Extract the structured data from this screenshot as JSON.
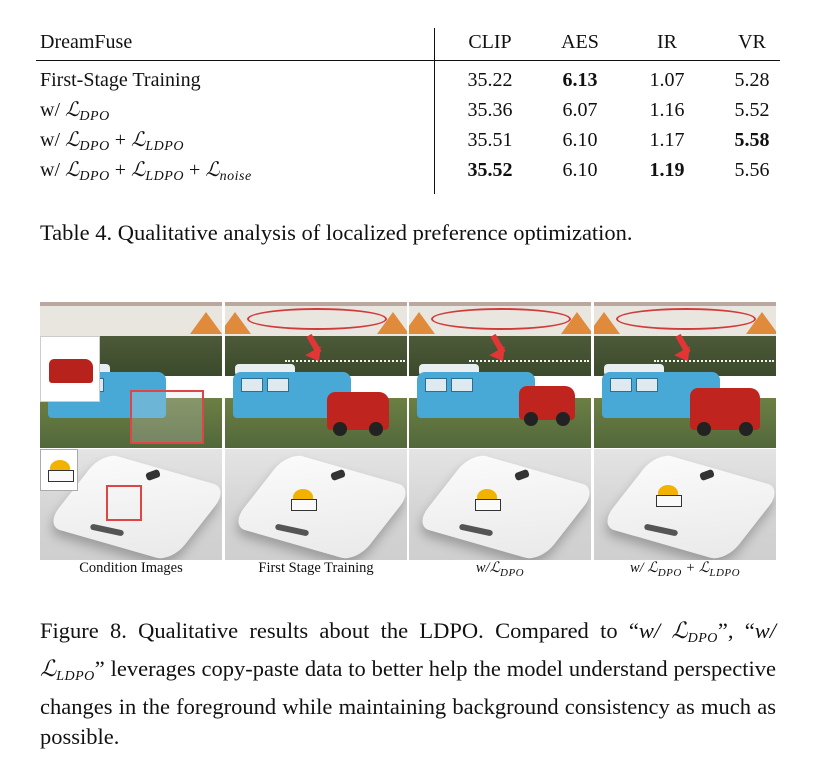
{
  "table": {
    "columns": [
      "DreamFuse",
      "CLIP",
      "AES",
      "IR",
      "VR"
    ],
    "rows": [
      {
        "method": "First-Stage Training",
        "CLIP": "35.22",
        "AES": "6.13",
        "IR": "1.07",
        "VR": "5.28"
      },
      {
        "method_prefix": "w/",
        "method_terms": [
          "DPO"
        ],
        "CLIP": "35.36",
        "AES": "6.07",
        "IR": "1.16",
        "VR": "5.52"
      },
      {
        "method_prefix": "w/",
        "method_terms": [
          "DPO",
          "LDPO"
        ],
        "CLIP": "35.51",
        "AES": "6.10",
        "IR": "1.17",
        "VR": "5.58"
      },
      {
        "method_prefix": "w/",
        "method_terms": [
          "DPO",
          "LDPO",
          "noise"
        ],
        "CLIP": "35.52",
        "AES": "6.10",
        "IR": "1.19",
        "VR": "5.56"
      }
    ],
    "bold_cells": [
      "row0.AES",
      "row2.VR",
      "row3.CLIP",
      "row3.IR"
    ],
    "script_L": "ℒ",
    "plus": "+",
    "caption": "Table 4. Qualitative analysis of localized preference optimization."
  },
  "figure": {
    "column_labels": {
      "condition": "Condition Images",
      "first_stage": "First Stage Training",
      "w_dpo_prefix": "w/",
      "w_dpo_sub": "DPO",
      "w_dpo_ldpo_prefix": "w/",
      "w_dpo_ldpo_sub1": "DPO",
      "w_dpo_ldpo_sub2": "LDPO"
    },
    "caption_lead": "Figure 8.",
    "caption_text_1": "Qualitative results about the LDPO. Compared to “",
    "caption_q1_prefix": "w/",
    "caption_q1_sub": "DPO",
    "caption_text_2": "”, “",
    "caption_q2_prefix": "w/",
    "caption_q2_sub": "LDPO",
    "caption_text_3": "” leverages copy-paste data to better help the model understand perspective changes in the foreground while maintaining background consistency as much as possible.",
    "colors": {
      "mask_red": "#e04545",
      "bus_blue": "#49a9d6",
      "car_red": "#c0241f",
      "heart_yellow": "#f2b300"
    }
  }
}
